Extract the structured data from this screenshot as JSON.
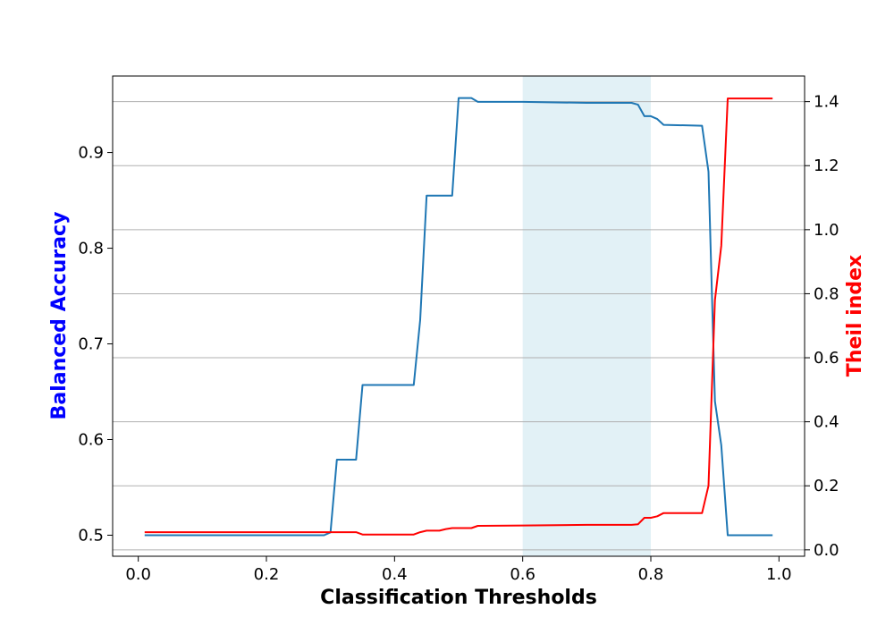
{
  "chart_data": {
    "type": "line",
    "xlabel": "Classification Thresholds",
    "ylabel_left": "Balanced Accuracy",
    "ylabel_right": "Theil index",
    "xlim": [
      -0.04,
      1.04
    ],
    "ylim_left": [
      0.478,
      0.98
    ],
    "ylim_right": [
      -0.02,
      1.48
    ],
    "x_ticks": [
      0.0,
      0.2,
      0.4,
      0.6,
      0.8,
      1.0
    ],
    "x_tick_labels": [
      "0.0",
      "0.2",
      "0.4",
      "0.6",
      "0.8",
      "1.0"
    ],
    "y_left_ticks": [
      0.5,
      0.6,
      0.7,
      0.8,
      0.9
    ],
    "y_left_tick_labels": [
      "0.5",
      "0.6",
      "0.7",
      "0.8",
      "0.9"
    ],
    "y_right_ticks": [
      0.0,
      0.2,
      0.4,
      0.6,
      0.8,
      1.0,
      1.2,
      1.4
    ],
    "y_right_tick_labels": [
      "0.0",
      "0.2",
      "0.4",
      "0.6",
      "0.8",
      "1.0",
      "1.2",
      "1.4"
    ],
    "grid": "horizontal, right axis",
    "highlight_region": [
      0.6,
      0.8
    ],
    "colors": {
      "accuracy": "#1f77b4",
      "theil": "#ff0000",
      "left_label": "#0000ff",
      "right_label": "#ff0000",
      "highlight": "#add8e6",
      "grid": "#b0b0b0"
    },
    "series": [
      {
        "axis": "left",
        "x": [
          0.01,
          0.29,
          0.3,
          0.31,
          0.34,
          0.35,
          0.42,
          0.43,
          0.44,
          0.45,
          0.48,
          0.49,
          0.5,
          0.52,
          0.53,
          0.6,
          0.7,
          0.77,
          0.78,
          0.79,
          0.8,
          0.81,
          0.82,
          0.88,
          0.89,
          0.9,
          0.91,
          0.92,
          0.99
        ],
        "values": [
          0.5,
          0.5,
          0.503,
          0.579,
          0.579,
          0.657,
          0.657,
          0.657,
          0.725,
          0.855,
          0.855,
          0.855,
          0.957,
          0.957,
          0.953,
          0.953,
          0.952,
          0.952,
          0.95,
          0.938,
          0.938,
          0.935,
          0.929,
          0.928,
          0.88,
          0.64,
          0.594,
          0.5,
          0.5
        ]
      },
      {
        "axis": "right",
        "x": [
          0.01,
          0.29,
          0.3,
          0.34,
          0.35,
          0.43,
          0.44,
          0.45,
          0.47,
          0.48,
          0.49,
          0.5,
          0.52,
          0.53,
          0.6,
          0.7,
          0.77,
          0.78,
          0.79,
          0.8,
          0.81,
          0.82,
          0.87,
          0.88,
          0.89,
          0.9,
          0.91,
          0.92,
          0.99
        ],
        "values": [
          0.055,
          0.055,
          0.055,
          0.055,
          0.048,
          0.048,
          0.055,
          0.06,
          0.06,
          0.065,
          0.068,
          0.068,
          0.068,
          0.075,
          0.076,
          0.078,
          0.078,
          0.08,
          0.1,
          0.1,
          0.105,
          0.115,
          0.115,
          0.115,
          0.2,
          0.78,
          0.95,
          1.41,
          1.41
        ]
      }
    ]
  }
}
